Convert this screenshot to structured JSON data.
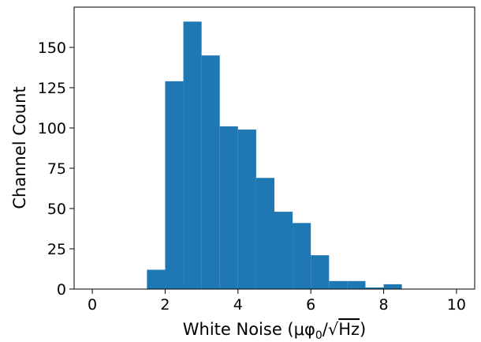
{
  "chart_data": {
    "type": "bar",
    "subtype": "histogram",
    "title": "",
    "xlabel": "White Noise (μφ₀/√Hz)",
    "ylabel": "Channel Count",
    "xlim": [
      -0.5,
      10.5
    ],
    "ylim": [
      0,
      175
    ],
    "xticks": [
      0,
      2,
      4,
      6,
      8,
      10
    ],
    "yticks": [
      0,
      25,
      50,
      75,
      100,
      125,
      150
    ],
    "bins": [
      {
        "x0": 1.5,
        "x1": 2.0,
        "count": 12
      },
      {
        "x0": 2.0,
        "x1": 2.5,
        "count": 129
      },
      {
        "x0": 2.5,
        "x1": 3.0,
        "count": 166
      },
      {
        "x0": 3.0,
        "x1": 3.5,
        "count": 145
      },
      {
        "x0": 3.5,
        "x1": 4.0,
        "count": 101
      },
      {
        "x0": 4.0,
        "x1": 4.5,
        "count": 99
      },
      {
        "x0": 4.5,
        "x1": 5.0,
        "count": 69
      },
      {
        "x0": 5.0,
        "x1": 5.5,
        "count": 48
      },
      {
        "x0": 5.5,
        "x1": 6.0,
        "count": 41
      },
      {
        "x0": 6.0,
        "x1": 6.5,
        "count": 21
      },
      {
        "x0": 6.5,
        "x1": 7.0,
        "count": 5
      },
      {
        "x0": 7.0,
        "x1": 7.5,
        "count": 5
      },
      {
        "x0": 7.5,
        "x1": 8.0,
        "count": 1
      },
      {
        "x0": 8.0,
        "x1": 8.5,
        "count": 3
      }
    ],
    "bar_color": "#1f77b4",
    "grid": false,
    "legend": "none"
  }
}
